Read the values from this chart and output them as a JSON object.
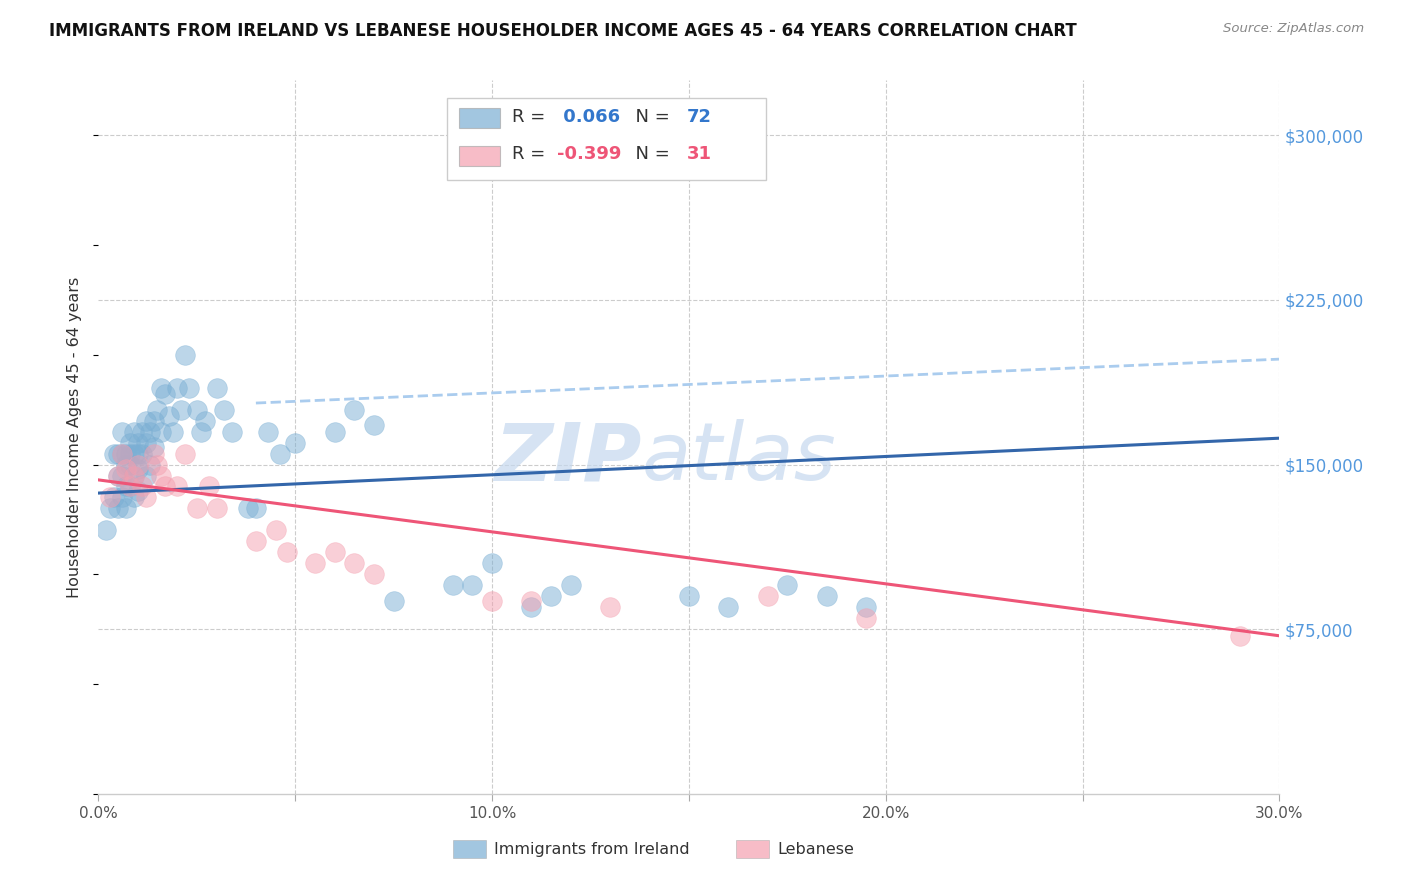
{
  "title": "IMMIGRANTS FROM IRELAND VS LEBANESE HOUSEHOLDER INCOME AGES 45 - 64 YEARS CORRELATION CHART",
  "source": "Source: ZipAtlas.com",
  "ylabel": "Householder Income Ages 45 - 64 years",
  "xmin": 0.0,
  "xmax": 0.3,
  "ymin": 0,
  "ymax": 325000,
  "yticks": [
    75000,
    150000,
    225000,
    300000
  ],
  "ytick_labels": [
    "$75,000",
    "$150,000",
    "$225,000",
    "$300,000"
  ],
  "xticks": [
    0.0,
    0.05,
    0.1,
    0.15,
    0.2,
    0.25,
    0.3
  ],
  "xtick_labels": [
    "0.0%",
    "",
    "10.0%",
    "",
    "20.0%",
    "",
    "30.0%"
  ],
  "ireland_R": 0.066,
  "ireland_N": 72,
  "lebanese_R": -0.399,
  "lebanese_N": 31,
  "ireland_color": "#7BAFD4",
  "lebanese_color": "#F4A0B0",
  "ireland_line_color": "#3366AA",
  "lebanese_line_color": "#EE5577",
  "dashed_line_color": "#AACCEE",
  "watermark": "ZIPatlas",
  "watermark_color": "#C5D8EE",
  "ireland_trend_x": [
    0.0,
    0.3
  ],
  "ireland_trend_y": [
    137000,
    162000
  ],
  "lebanese_trend_x": [
    0.0,
    0.3
  ],
  "lebanese_trend_y": [
    143000,
    72000
  ],
  "dashed_trend_x": [
    0.04,
    0.3
  ],
  "dashed_trend_y": [
    178000,
    198000
  ],
  "ireland_x": [
    0.002,
    0.003,
    0.004,
    0.004,
    0.005,
    0.005,
    0.005,
    0.006,
    0.006,
    0.006,
    0.006,
    0.007,
    0.007,
    0.007,
    0.007,
    0.008,
    0.008,
    0.008,
    0.008,
    0.009,
    0.009,
    0.009,
    0.009,
    0.01,
    0.01,
    0.01,
    0.01,
    0.011,
    0.011,
    0.012,
    0.012,
    0.012,
    0.013,
    0.013,
    0.014,
    0.014,
    0.015,
    0.016,
    0.016,
    0.017,
    0.018,
    0.019,
    0.02,
    0.021,
    0.022,
    0.023,
    0.025,
    0.026,
    0.027,
    0.03,
    0.032,
    0.034,
    0.038,
    0.04,
    0.043,
    0.046,
    0.05,
    0.06,
    0.065,
    0.07,
    0.075,
    0.09,
    0.095,
    0.1,
    0.11,
    0.115,
    0.12,
    0.15,
    0.16,
    0.175,
    0.185,
    0.195
  ],
  "ireland_y": [
    120000,
    130000,
    135000,
    155000,
    155000,
    145000,
    130000,
    165000,
    155000,
    145000,
    135000,
    155000,
    150000,
    140000,
    130000,
    160000,
    155000,
    150000,
    140000,
    165000,
    155000,
    145000,
    135000,
    160000,
    155000,
    148000,
    138000,
    165000,
    155000,
    170000,
    160000,
    145000,
    165000,
    150000,
    170000,
    158000,
    175000,
    185000,
    165000,
    182000,
    172000,
    165000,
    185000,
    175000,
    200000,
    185000,
    175000,
    165000,
    170000,
    185000,
    175000,
    165000,
    130000,
    130000,
    165000,
    155000,
    160000,
    165000,
    175000,
    168000,
    88000,
    95000,
    95000,
    105000,
    85000,
    90000,
    95000,
    90000,
    85000,
    95000,
    90000,
    85000
  ],
  "lebanese_x": [
    0.003,
    0.005,
    0.006,
    0.007,
    0.008,
    0.009,
    0.01,
    0.011,
    0.012,
    0.014,
    0.015,
    0.016,
    0.017,
    0.02,
    0.022,
    0.025,
    0.028,
    0.03,
    0.04,
    0.045,
    0.048,
    0.055,
    0.06,
    0.065,
    0.07,
    0.1,
    0.11,
    0.13,
    0.17,
    0.195,
    0.29
  ],
  "lebanese_y": [
    135000,
    145000,
    155000,
    148000,
    140000,
    145000,
    150000,
    140000,
    135000,
    155000,
    150000,
    145000,
    140000,
    140000,
    155000,
    130000,
    140000,
    130000,
    115000,
    120000,
    110000,
    105000,
    110000,
    105000,
    100000,
    88000,
    88000,
    85000,
    90000,
    80000,
    72000
  ]
}
